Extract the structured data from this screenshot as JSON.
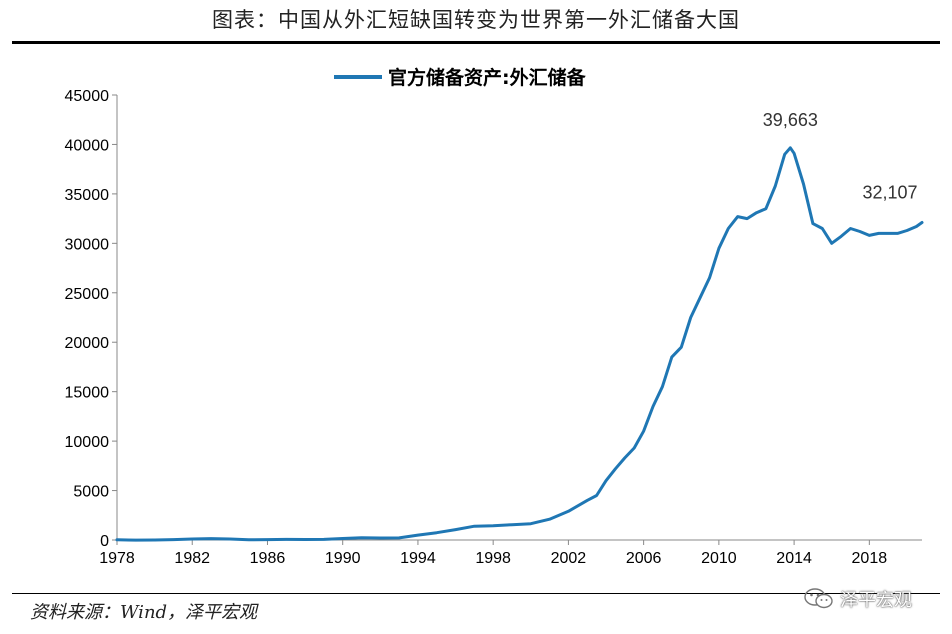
{
  "figure": {
    "title": "图表：中国从外汇短缺国转变为世界第一外汇储备大国",
    "source": "资料来源：Wind，泽平宏观",
    "watermark": "泽平宏观",
    "watermark_icon": "wechat-icon"
  },
  "chart_data": {
    "type": "line",
    "title": "",
    "xlabel": "",
    "ylabel": "",
    "xlim": [
      1978,
      2020.8
    ],
    "ylim": [
      0,
      45000
    ],
    "x_ticks": [
      "1978",
      "1982",
      "1986",
      "1990",
      "1994",
      "1998",
      "2002",
      "2006",
      "2010",
      "2014",
      "2018"
    ],
    "y_ticks": [
      "0",
      "5000",
      "10000",
      "15000",
      "20000",
      "25000",
      "30000",
      "35000",
      "40000",
      "45000"
    ],
    "grid": false,
    "legend_position": "top-center",
    "series": [
      {
        "name": "官方储备资产:外汇储备",
        "color": "#1F77B4",
        "x": [
          1978,
          1979,
          1980,
          1981,
          1982,
          1983,
          1984,
          1985,
          1986,
          1987,
          1988,
          1989,
          1990,
          1991,
          1992,
          1993,
          1994,
          1995,
          1996,
          1997,
          1998,
          1999,
          2000,
          2001,
          2002,
          2003,
          2003.5,
          2004,
          2004.5,
          2005,
          2005.5,
          2006,
          2006.5,
          2007,
          2007.5,
          2008,
          2008.5,
          2009,
          2009.5,
          2010,
          2010.5,
          2011,
          2011.5,
          2012,
          2012.5,
          2013,
          2013.5,
          2013.8,
          2014,
          2014.5,
          2015,
          2015.5,
          2016,
          2016.5,
          2017,
          2017.5,
          2018,
          2018.5,
          2019,
          2019.5,
          2020,
          2020.5,
          2020.8
        ],
        "values": [
          20,
          -10,
          0,
          40,
          100,
          140,
          100,
          20,
          40,
          60,
          50,
          60,
          150,
          220,
          200,
          210,
          500,
          740,
          1050,
          1400,
          1450,
          1550,
          1650,
          2100,
          2900,
          4000,
          4500,
          6000,
          7200,
          8300,
          9300,
          11000,
          13500,
          15500,
          18500,
          19500,
          22500,
          24500,
          26500,
          29500,
          31500,
          32700,
          32500,
          33100,
          33500,
          35800,
          39000,
          39663,
          39100,
          36000,
          32000,
          31500,
          30000,
          30700,
          31500,
          31200,
          30800,
          31000,
          31000,
          31000,
          31300,
          31700,
          32107
        ]
      }
    ],
    "annotations": [
      {
        "label": "39,663",
        "x": 2013.8,
        "y": 39663
      },
      {
        "label": "32,107",
        "x": 2020.8,
        "y": 32107
      }
    ]
  }
}
